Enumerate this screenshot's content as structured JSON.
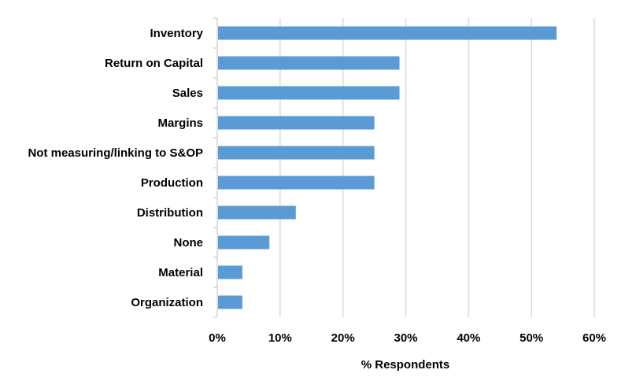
{
  "chart_data": {
    "type": "bar",
    "orientation": "horizontal",
    "title": "",
    "xlabel": "% Respondents",
    "ylabel": "",
    "categories": [
      "Inventory",
      "Return on Capital",
      "Sales",
      "Margins",
      "Not measuring/linking to S&OP",
      "Production",
      "Distribution",
      "None",
      "Material",
      "Organization"
    ],
    "values": [
      54,
      29,
      29,
      25,
      25,
      25,
      12.5,
      8.3,
      4,
      4
    ],
    "xlim": [
      0,
      60
    ],
    "x_ticks": [
      0,
      10,
      20,
      30,
      40,
      50,
      60
    ],
    "x_tick_labels": [
      "0%",
      "10%",
      "20%",
      "30%",
      "40%",
      "50%",
      "60%"
    ],
    "grid": "vertical",
    "legend": "none",
    "bar_color": "#5B9BD5",
    "grid_color": "#D9D9D9",
    "axis_color": "#BFBFBF"
  }
}
